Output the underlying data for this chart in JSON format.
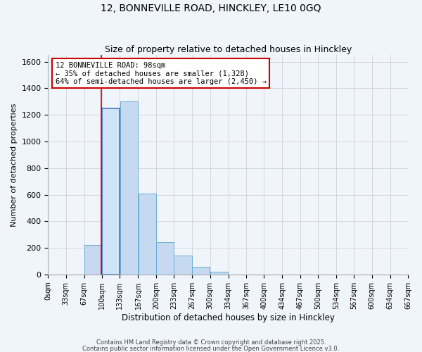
{
  "title": "12, BONNEVILLE ROAD, HINCKLEY, LE10 0GQ",
  "subtitle": "Size of property relative to detached houses in Hinckley",
  "xlabel": "Distribution of detached houses by size in Hinckley",
  "ylabel": "Number of detached properties",
  "annotation_line1": "12 BONNEVILLE ROAD: 98sqm",
  "annotation_line2": "← 35% of detached houses are smaller (1,328)",
  "annotation_line3": "64% of semi-detached houses are larger (2,450) →",
  "bar_edges": [
    0,
    33,
    67,
    100,
    133,
    167,
    200,
    233,
    267,
    300,
    334,
    367,
    400,
    434,
    467,
    500,
    534,
    567,
    600,
    634,
    667
  ],
  "bar_heights": [
    0,
    0,
    220,
    1250,
    1300,
    610,
    245,
    140,
    55,
    20,
    0,
    0,
    0,
    0,
    0,
    0,
    0,
    0,
    0,
    0
  ],
  "bar_color": "#c6d9f0",
  "bar_edge_color": "#6baed6",
  "highlight_bar_index": 3,
  "highlight_color": "#d0e4f7",
  "highlight_edge_color": "#4472c4",
  "redline_x": 98,
  "redline_color": "#cc0000",
  "annotation_box_color": "#ffffff",
  "annotation_box_edge_color": "#cc0000",
  "grid_color": "#cccccc",
  "bg_color": "#f0f4fb",
  "plot_bg_color": "#f0f4fb",
  "ylim": [
    0,
    1650
  ],
  "xlim": [
    0,
    667
  ],
  "yticks": [
    0,
    200,
    400,
    600,
    800,
    1000,
    1200,
    1400,
    1600
  ],
  "tick_labels": [
    "0sqm",
    "33sqm",
    "67sqm",
    "100sqm",
    "133sqm",
    "167sqm",
    "200sqm",
    "233sqm",
    "267sqm",
    "300sqm",
    "334sqm",
    "367sqm",
    "400sqm",
    "434sqm",
    "467sqm",
    "500sqm",
    "534sqm",
    "567sqm",
    "600sqm",
    "634sqm",
    "667sqm"
  ],
  "footer_text1": "Contains HM Land Registry data © Crown copyright and database right 2025.",
  "footer_text2": "Contains public sector information licensed under the Open Government Licence v3.0."
}
